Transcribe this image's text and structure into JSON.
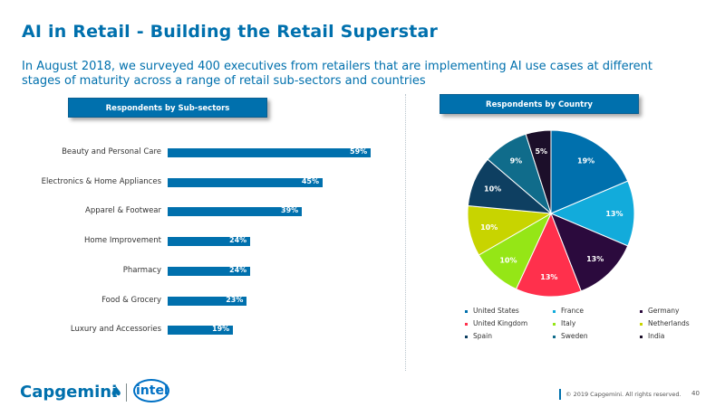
{
  "title": "AI in Retail - Building the Retail Superstar",
  "subtitle": "In August 2018, we surveyed 400 executives from retailers that are implementing AI use cases at different stages of maturity across a range of retail sub-sectors and countries",
  "section_headers": {
    "sub_sectors": "Respondents by Sub-sectors",
    "country": "Respondents by Country"
  },
  "chart_data": [
    {
      "type": "bar",
      "orientation": "horizontal",
      "title": "Respondents by Sub-sectors",
      "categories": [
        "Beauty and Personal Care",
        "Electronics & Home Appliances",
        "Apparel & Footwear",
        "Home Improvement",
        "Pharmacy",
        "Food & Grocery",
        "Luxury and Accessories"
      ],
      "values": [
        59,
        45,
        39,
        24,
        24,
        23,
        19
      ],
      "value_labels": [
        "59%",
        "45%",
        "39%",
        "24%",
        "24%",
        "23%",
        "19%"
      ],
      "color": "#0070ad"
    },
    {
      "type": "pie",
      "title": "Respondents by Country",
      "categories": [
        "United States",
        "France",
        "Germany",
        "United Kingdom",
        "Italy",
        "Netherlands",
        "Spain",
        "Sweden",
        "India"
      ],
      "values": [
        19,
        13,
        13,
        13,
        10,
        10,
        10,
        9,
        5
      ],
      "value_labels": [
        "19%",
        "13%",
        "13%",
        "13%",
        "10%",
        "10%",
        "10%",
        "9%",
        "5%"
      ],
      "colors": [
        "#0070ad",
        "#12abdb",
        "#2b0a3d",
        "#ff304c",
        "#95e616",
        "#c8d400",
        "#0e3f61",
        "#106c8b",
        "#1c0f2a"
      ],
      "legend_position": "bottom"
    }
  ],
  "footer": {
    "logo_text": "Capgemini",
    "partner_logo": "intel",
    "copyright": "© 2019 Capgemini. All rights reserved.",
    "page_number": "40"
  }
}
